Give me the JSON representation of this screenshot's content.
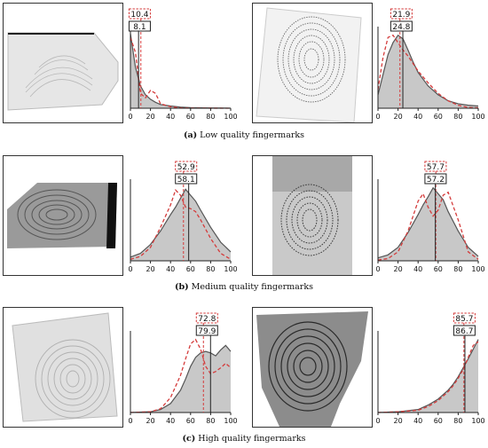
{
  "figure": {
    "captions": {
      "a_letter": "(a)",
      "a_text": "Low quality fingermarks",
      "b_letter": "(b)",
      "b_text": "Medium quality fingermarks",
      "c_letter": "(c)",
      "c_text": "High quality fingermarks"
    },
    "colors": {
      "histogram_fill": "#c8c8c8",
      "histogram_line": "#555555",
      "fit_curve": "#d43b3b",
      "mean_box_dashed": "#d43b3b",
      "mean_box_solid": "#222222"
    }
  },
  "chart_data": [
    {
      "type": "area",
      "panel": "a-left",
      "x": [
        0,
        5,
        10,
        15,
        20,
        25,
        30,
        40,
        50,
        60,
        80,
        100
      ],
      "y": [
        1.0,
        0.55,
        0.3,
        0.18,
        0.12,
        0.08,
        0.05,
        0.03,
        0.015,
        0.008,
        0.003,
        0.001
      ],
      "fit": [
        0.95,
        0.75,
        0.2,
        0.14,
        0.24,
        0.2,
        0.06,
        0.02,
        0.005,
        0.002,
        0.001,
        0
      ],
      "dashed_value": "10.4",
      "solid_value": "8.1",
      "x_ticks": [
        "0",
        "20",
        "40",
        "60",
        "80",
        "100"
      ],
      "xlim": [
        0,
        100
      ]
    },
    {
      "type": "area",
      "panel": "a-right",
      "x": [
        0,
        5,
        10,
        15,
        20,
        25,
        30,
        35,
        40,
        50,
        60,
        70,
        80,
        90,
        100
      ],
      "y": [
        0.18,
        0.45,
        0.72,
        0.88,
        0.98,
        0.93,
        0.78,
        0.62,
        0.48,
        0.3,
        0.18,
        0.1,
        0.06,
        0.04,
        0.03
      ],
      "fit": [
        0.25,
        0.68,
        0.95,
        0.98,
        0.88,
        0.78,
        0.7,
        0.6,
        0.5,
        0.34,
        0.2,
        0.1,
        0.04,
        0.01,
        0.005
      ],
      "dashed_value": "21.9",
      "solid_value": "24.8",
      "x_ticks": [
        "0",
        "20",
        "40",
        "60",
        "80",
        "100"
      ],
      "xlim": [
        0,
        100
      ]
    },
    {
      "type": "area",
      "panel": "b-left",
      "x": [
        0,
        10,
        20,
        30,
        40,
        45,
        50,
        55,
        60,
        65,
        70,
        80,
        90,
        100
      ],
      "y": [
        0.05,
        0.1,
        0.22,
        0.4,
        0.62,
        0.72,
        0.84,
        0.96,
        0.88,
        0.8,
        0.68,
        0.45,
        0.25,
        0.12
      ],
      "fit": [
        0.02,
        0.06,
        0.18,
        0.45,
        0.75,
        0.95,
        0.88,
        0.72,
        0.7,
        0.66,
        0.55,
        0.3,
        0.1,
        0.02
      ],
      "dashed_value": "52.9",
      "solid_value": "58.1",
      "x_ticks": [
        "0",
        "20",
        "40",
        "60",
        "80",
        "100"
      ],
      "xlim": [
        0,
        100
      ]
    },
    {
      "type": "area",
      "panel": "b-right",
      "x": [
        0,
        10,
        20,
        30,
        40,
        45,
        50,
        55,
        60,
        65,
        70,
        80,
        90,
        100
      ],
      "y": [
        0.04,
        0.08,
        0.18,
        0.38,
        0.62,
        0.75,
        0.86,
        0.98,
        0.9,
        0.82,
        0.66,
        0.4,
        0.18,
        0.06
      ],
      "fit": [
        0.01,
        0.03,
        0.12,
        0.4,
        0.8,
        0.9,
        0.72,
        0.6,
        0.68,
        0.88,
        0.92,
        0.55,
        0.12,
        0.02
      ],
      "dashed_value": "57.7",
      "solid_value": "57.2",
      "x_ticks": [
        "0",
        "20",
        "40",
        "60",
        "80",
        "100"
      ],
      "xlim": [
        0,
        100
      ]
    },
    {
      "type": "area",
      "panel": "c-left",
      "x": [
        0,
        20,
        30,
        40,
        50,
        55,
        60,
        65,
        70,
        75,
        80,
        85,
        90,
        95,
        100
      ],
      "y": [
        0.0,
        0.01,
        0.04,
        0.12,
        0.3,
        0.45,
        0.62,
        0.74,
        0.8,
        0.82,
        0.8,
        0.76,
        0.84,
        0.9,
        0.82
      ],
      "fit": [
        0.0,
        0.01,
        0.05,
        0.2,
        0.5,
        0.72,
        0.92,
        0.98,
        0.85,
        0.62,
        0.52,
        0.55,
        0.6,
        0.66,
        0.6
      ],
      "dashed_value": "72.8",
      "solid_value": "79.9",
      "x_ticks": [
        "0",
        "20",
        "40",
        "60",
        "80",
        "100"
      ],
      "xlim": [
        0,
        100
      ]
    },
    {
      "type": "area",
      "panel": "c-right",
      "x": [
        0,
        20,
        40,
        50,
        60,
        65,
        70,
        75,
        80,
        85,
        90,
        95,
        100
      ],
      "y": [
        0.0,
        0.01,
        0.04,
        0.1,
        0.18,
        0.24,
        0.3,
        0.38,
        0.48,
        0.6,
        0.72,
        0.85,
        0.98
      ],
      "fit": [
        0.0,
        0.01,
        0.03,
        0.08,
        0.16,
        0.22,
        0.28,
        0.36,
        0.46,
        0.58,
        0.74,
        0.9,
        0.95
      ],
      "dashed_value": "85.7",
      "solid_value": "86.7",
      "x_ticks": [
        "0",
        "20",
        "40",
        "60",
        "80",
        "100"
      ],
      "xlim": [
        0,
        100
      ]
    }
  ]
}
